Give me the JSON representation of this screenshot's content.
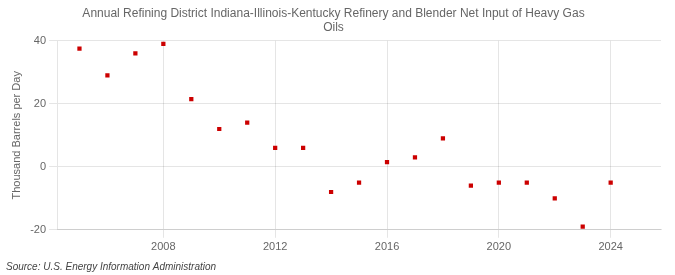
{
  "chart_data": {
    "type": "scatter",
    "title": "Annual Refining District Indiana-Illinois-Kentucky Refinery and Blender Net Input of Heavy Gas\nOils",
    "ylabel": "Thousand Barrels per Day",
    "annotations": [
      "Source: U.S. Energy Information Administration"
    ],
    "x": [
      2005,
      2006,
      2007,
      2008,
      2009,
      2010,
      2011,
      2012,
      2013,
      2014,
      2015,
      2016,
      2017,
      2018,
      2019,
      2020,
      2021,
      2022,
      2023,
      2024
    ],
    "values": [
      37.5,
      29,
      36,
      39,
      21.5,
      12,
      14,
      6,
      6,
      -8,
      -5,
      1.5,
      3,
      9,
      -6,
      -5,
      -5,
      -10,
      -19,
      -5
    ],
    "color": "#cc0000",
    "marker": "square",
    "xlim": [
      2004.2,
      2025.8
    ],
    "xticks": [
      2008,
      2012,
      2016,
      2020,
      2024
    ],
    "ylim": [
      -20,
      40
    ],
    "yticks": [
      -20,
      0,
      20,
      40
    ],
    "grid": true
  }
}
